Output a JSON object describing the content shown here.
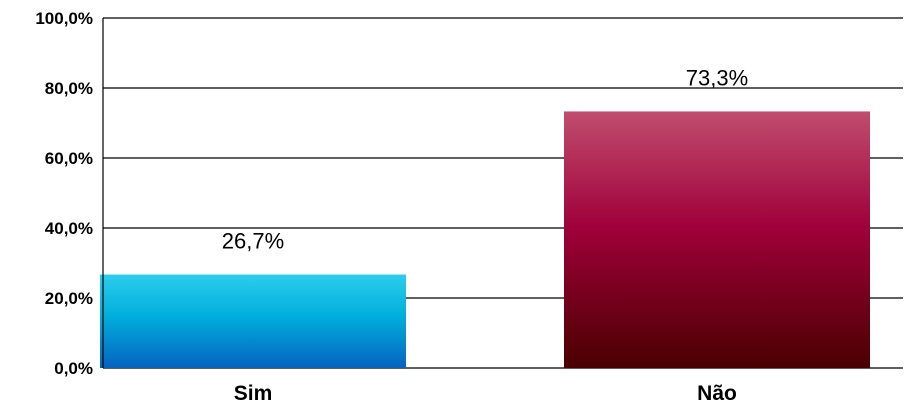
{
  "chart_data": {
    "type": "bar",
    "categories": [
      "Sim",
      "Não"
    ],
    "values": [
      26.7,
      73.3
    ],
    "data_labels": [
      "26,7%",
      "73,3%"
    ],
    "title": "",
    "xlabel": "",
    "ylabel": "",
    "ylim": [
      0,
      100
    ],
    "yticks": [
      0,
      20,
      40,
      60,
      80,
      100
    ],
    "ytick_labels": [
      "0,0%",
      "20,0%",
      "40,0%",
      "60,0%",
      "80,0%",
      "100,0%"
    ],
    "grid": true,
    "legend": "none",
    "colors": {
      "Sim": {
        "top": "#2dcdec",
        "mid": "#00aedc",
        "bottom": "#0563c1"
      },
      "Não": {
        "top": "#c04d6f",
        "mid": "#a0003a",
        "bottom": "#4a0000"
      }
    }
  }
}
